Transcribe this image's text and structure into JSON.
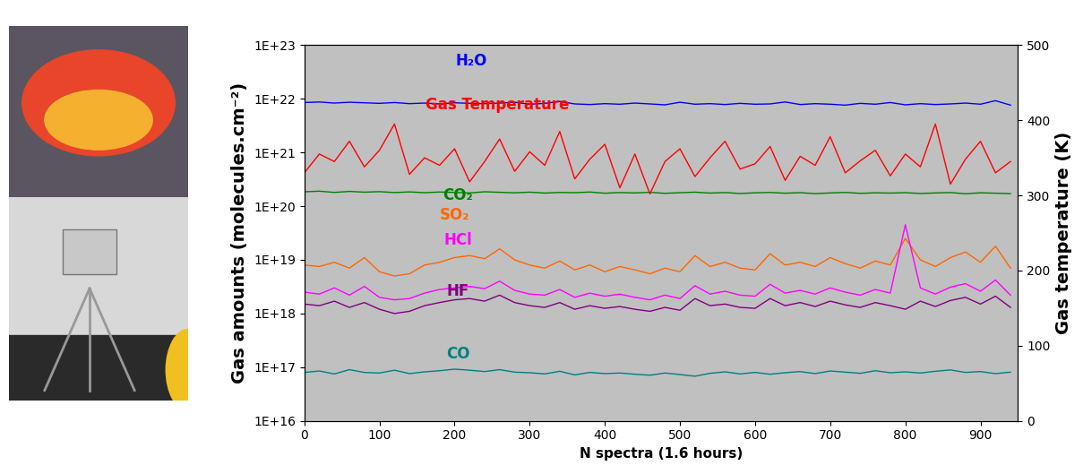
{
  "chart_data": {
    "type": "line",
    "x_label": "N spectra (1.6 hours)",
    "y_label": "Gas amounts (molecules.cm⁻²)",
    "y2_label": "Gas temperature (K)",
    "log": "y",
    "grid": false,
    "xlim": [
      0,
      950
    ],
    "xticks": [
      0,
      100,
      200,
      300,
      400,
      500,
      600,
      700,
      800,
      900
    ],
    "ylim": [
      1e+16,
      1e+23
    ],
    "yticks": [
      {
        "value": 1e+16,
        "label": "1E+16"
      },
      {
        "value": 1e+17,
        "label": "1E+17"
      },
      {
        "value": 1e+18,
        "label": "1E+18"
      },
      {
        "value": 1e+19,
        "label": "1E+19"
      },
      {
        "value": 1e+20,
        "label": "1E+20"
      },
      {
        "value": 1e+21,
        "label": "1E+21"
      },
      {
        "value": 1e+22,
        "label": "1E+22"
      },
      {
        "value": 1e+23,
        "label": "1E+23"
      }
    ],
    "y2lim": [
      0,
      500
    ],
    "y2ticks": [
      0,
      100,
      200,
      300,
      400,
      500
    ],
    "x": [
      0,
      20,
      40,
      60,
      80,
      100,
      120,
      140,
      160,
      180,
      200,
      220,
      240,
      260,
      280,
      300,
      320,
      340,
      360,
      380,
      400,
      420,
      440,
      460,
      480,
      500,
      520,
      540,
      560,
      580,
      600,
      620,
      640,
      660,
      680,
      700,
      720,
      740,
      760,
      780,
      800,
      820,
      840,
      860,
      880,
      900,
      920,
      940
    ],
    "series": [
      {
        "name": "H₂O",
        "color": "#0000ff",
        "values": [
          8.5e+21,
          8.7e+21,
          8.3e+21,
          8.6e+21,
          8.4e+21,
          8.2e+21,
          8.5e+21,
          8.1e+21,
          8.3e+21,
          8e+21,
          8.4e+21,
          8.2e+21,
          8.1e+21,
          8.3e+21,
          8.6e+21,
          7.9e+21,
          8.2e+21,
          8.9e+21,
          8e+21,
          7.8e+21,
          8.1e+21,
          7.9e+21,
          8.3e+21,
          8e+21,
          7.7e+21,
          8.6e+21,
          7.9e+21,
          8.1e+21,
          7.8e+21,
          8.2e+21,
          7.9e+21,
          8e+21,
          8.7e+21,
          7.8e+21,
          8.1e+21,
          7.9e+21,
          7.6e+21,
          8.2e+21,
          7.9e+21,
          8.5e+21,
          7.7e+21,
          8.1e+21,
          7.8e+21,
          8e+21,
          8.3e+21,
          7.9e+21,
          9.2e+21,
          7.6e+21
        ]
      },
      {
        "name": "Gas Temperature",
        "color": "#ff0000",
        "axis": "y2",
        "values": [
          330,
          355,
          345,
          372,
          338,
          360,
          395,
          328,
          350,
          340,
          362,
          318,
          345,
          375,
          332,
          358,
          340,
          385,
          322,
          348,
          368,
          310,
          355,
          302,
          345,
          362,
          325,
          350,
          372,
          335,
          342,
          365,
          320,
          352,
          340,
          378,
          330,
          346,
          360,
          326,
          355,
          338,
          395,
          315,
          348,
          372,
          330,
          345
        ]
      },
      {
        "name": "CO₂",
        "color": "#008000",
        "values": [
          1.85e+20,
          1.9e+20,
          1.8e+20,
          1.88e+20,
          1.82e+20,
          1.86e+20,
          1.79e+20,
          1.84e+20,
          1.78e+20,
          1.83e+20,
          1.8e+20,
          1.76e+20,
          1.85e+20,
          1.81e+20,
          1.77e+20,
          1.82e+20,
          1.75e+20,
          1.8e+20,
          1.78e+20,
          1.83e+20,
          1.74e+20,
          1.79e+20,
          1.76e+20,
          1.81e+20,
          1.73e+20,
          1.78e+20,
          1.82e+20,
          1.75e+20,
          1.79e+20,
          1.72e+20,
          1.77e+20,
          1.8e+20,
          1.74e+20,
          1.78e+20,
          1.71e+20,
          1.76e+20,
          1.8e+20,
          1.73e+20,
          1.77e+20,
          1.75e+20,
          1.78e+20,
          1.72e+20,
          1.76e+20,
          1.79e+20,
          1.7e+20,
          1.77e+20,
          1.74e+20,
          1.71e+20
        ]
      },
      {
        "name": "SO₂",
        "color": "#ff6600",
        "values": [
          8e+18,
          7.5e+18,
          9e+18,
          7e+18,
          1.1e+19,
          6e+18,
          5e+18,
          5.5e+18,
          8e+18,
          9e+18,
          1.1e+19,
          1.2e+19,
          1.05e+19,
          1.6e+19,
          1e+19,
          8e+18,
          7e+18,
          9.5e+18,
          6.5e+18,
          8e+18,
          6e+18,
          7.5e+18,
          6.5e+18,
          5.5e+18,
          7e+18,
          6e+18,
          1.2e+19,
          7.5e+18,
          9e+18,
          7e+18,
          6.5e+18,
          1.3e+19,
          8e+18,
          9e+18,
          7.5e+18,
          1.1e+19,
          8.5e+18,
          7e+18,
          9.5e+18,
          8e+18,
          2.5e+19,
          1e+19,
          7.5e+18,
          1.1e+19,
          1.4e+19,
          9e+18,
          1.8e+19,
          7e+18
        ]
      },
      {
        "name": "HCl",
        "color": "#ff00ff",
        "values": [
          2.5e+18,
          2.3e+18,
          3e+18,
          2.2e+18,
          3.2e+18,
          2e+18,
          1.8e+18,
          1.9e+18,
          2.4e+18,
          2.8e+18,
          3e+18,
          3.2e+18,
          2.9e+18,
          4e+18,
          2.7e+18,
          2.3e+18,
          2.2e+18,
          2.8e+18,
          2e+18,
          2.4e+18,
          2.1e+18,
          2.3e+18,
          2e+18,
          1.8e+18,
          2.2e+18,
          1.9e+18,
          3.3e+18,
          2.3e+18,
          2.6e+18,
          2.2e+18,
          2.1e+18,
          3.5e+18,
          2.4e+18,
          2.7e+18,
          2.3e+18,
          3e+18,
          2.5e+18,
          2.2e+18,
          2.8e+18,
          2.4e+18,
          4.5e+19,
          3e+18,
          2.3e+18,
          3.1e+18,
          3.6e+18,
          2.6e+18,
          4.2e+18,
          2.2e+18
        ]
      },
      {
        "name": "HF",
        "color": "#800080",
        "values": [
          1.5e+18,
          1.4e+18,
          1.7e+18,
          1.3e+18,
          1.6e+18,
          1.2e+18,
          1e+18,
          1.1e+18,
          1.4e+18,
          1.6e+18,
          1.8e+18,
          1.9e+18,
          1.7e+18,
          2.2e+18,
          1.6e+18,
          1.4e+18,
          1.3e+18,
          1.6e+18,
          1.2e+18,
          1.4e+18,
          1.25e+18,
          1.35e+18,
          1.2e+18,
          1.1e+18,
          1.3e+18,
          1.15e+18,
          1.9e+18,
          1.4e+18,
          1.5e+18,
          1.3e+18,
          1.25e+18,
          1.9e+18,
          1.4e+18,
          1.6e+18,
          1.35e+18,
          1.7e+18,
          1.45e+18,
          1.3e+18,
          1.6e+18,
          1.4e+18,
          1.2e+18,
          1.7e+18,
          1.35e+18,
          1.75e+18,
          2e+18,
          1.5e+18,
          2.1e+18,
          1.3e+18
        ]
      },
      {
        "name": "CO",
        "color": "#008080",
        "values": [
          8e+16,
          8.5e+16,
          7.5e+16,
          9e+16,
          8e+16,
          7.8e+16,
          8.8e+16,
          7.6e+16,
          8.2e+16,
          8.6e+16,
          9.2e+16,
          8.8e+16,
          8.3e+16,
          9e+16,
          8.1e+16,
          7.9e+16,
          7.5e+16,
          8.4e+16,
          7.2e+16,
          8e+16,
          7.6e+16,
          7.8e+16,
          7.4e+16,
          7.1e+16,
          7.8e+16,
          7.3e+16,
          6.8e+16,
          7.7e+16,
          8.2e+16,
          7.5e+16,
          8e+16,
          7.4e+16,
          7.9e+16,
          8.3e+16,
          7.6e+16,
          8.5e+16,
          8.1e+16,
          7.7e+16,
          8.6e+16,
          7.9e+16,
          8.2e+16,
          7.8e+16,
          8.4e+16,
          8.9e+16,
          8e+16,
          8.3e+16,
          7.6e+16,
          8.1e+16
        ]
      }
    ]
  }
}
